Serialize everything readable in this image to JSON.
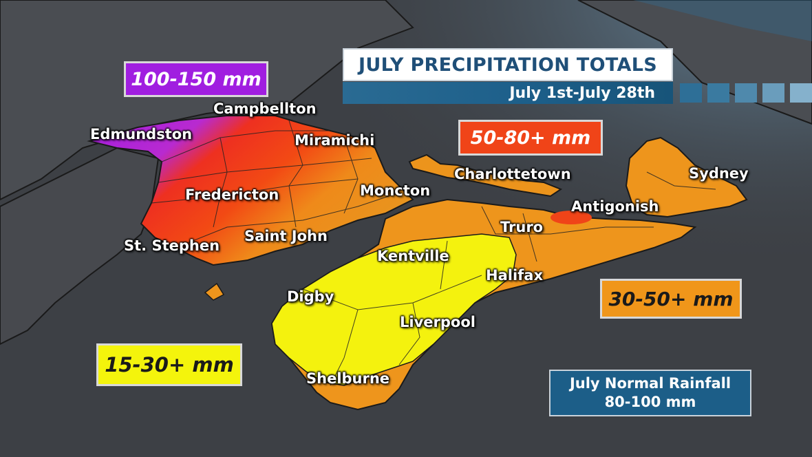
{
  "title": "JULY PRECIPITATION TOTALS",
  "subtitle": "July 1st-July 28th",
  "legend": {
    "purple": {
      "label": "100-150 mm",
      "color": "#a01ee0"
    },
    "red": {
      "label": "50-80+ mm",
      "color": "#f04418"
    },
    "orange": {
      "label": "30-50+ mm",
      "color": "#f0961a"
    },
    "yellow": {
      "label": "15-30+ mm",
      "color": "#f4f40c"
    }
  },
  "normal": {
    "line1": "July Normal Rainfall",
    "line2": "80-100 mm"
  },
  "cities": [
    {
      "name": "Campbellton"
    },
    {
      "name": "Edmundston"
    },
    {
      "name": "Miramichi"
    },
    {
      "name": "Charlottetown"
    },
    {
      "name": "Sydney"
    },
    {
      "name": "Moncton"
    },
    {
      "name": "Fredericton"
    },
    {
      "name": "Antigonish"
    },
    {
      "name": "Truro"
    },
    {
      "name": "Saint John"
    },
    {
      "name": "St. Stephen"
    },
    {
      "name": "Kentville"
    },
    {
      "name": "Halifax"
    },
    {
      "name": "Digby"
    },
    {
      "name": "Liverpool"
    },
    {
      "name": "Shelburne"
    }
  ]
}
